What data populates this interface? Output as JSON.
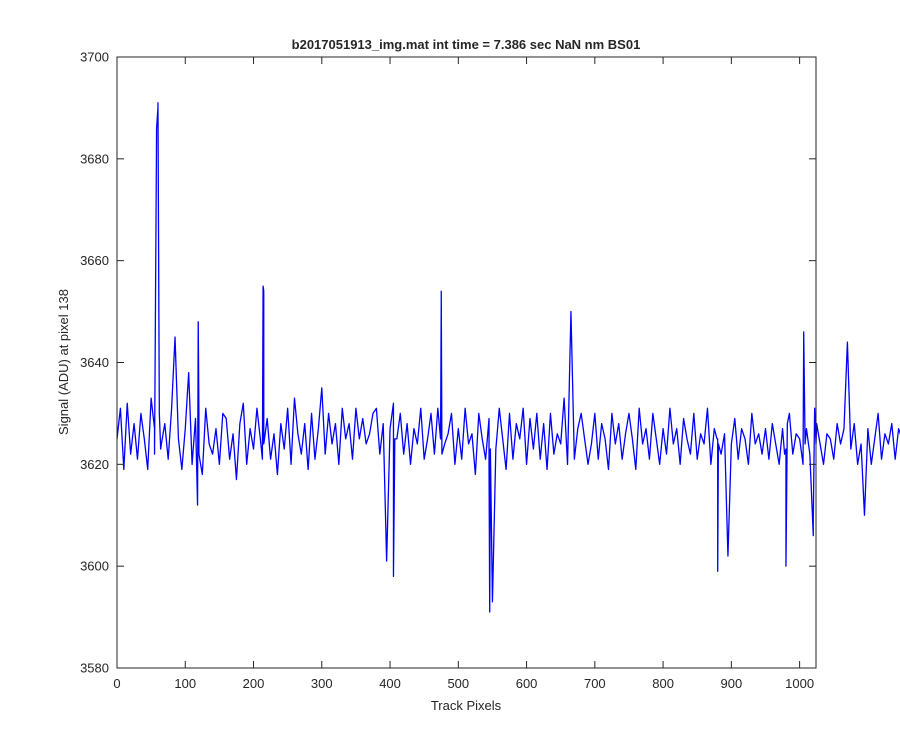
{
  "chart_data": {
    "type": "line",
    "title": "b2017051913_img.mat int time = 7.386 sec  NaN nm BS01",
    "xlabel": "Track Pixels",
    "ylabel": "Signal (ADU) at pixel 138",
    "xlim": [
      0,
      1024
    ],
    "ylim": [
      3580,
      3700
    ],
    "xticks": [
      0,
      100,
      200,
      300,
      400,
      500,
      600,
      700,
      800,
      900,
      1000
    ],
    "yticks": [
      3580,
      3600,
      3620,
      3640,
      3660,
      3680,
      3700
    ],
    "grid": false,
    "box": true,
    "series": [
      {
        "color": "#0000ff",
        "step": 5,
        "x0": 0,
        "values": [
          3625,
          3631,
          3619,
          3632,
          3622,
          3628,
          3621,
          3630,
          3625,
          3619,
          3633,
          3627,
          3690,
          3624,
          3628,
          3621,
          3631,
          3645,
          3625,
          3619,
          3627,
          3638,
          3620,
          3629,
          3630,
          3618,
          3631,
          3624,
          3622,
          3627,
          3620,
          3630,
          3629,
          3621,
          3626,
          3617,
          3628,
          3632,
          3620,
          3627,
          3623,
          3631,
          3625,
          3654,
          3629,
          3621,
          3626,
          3618,
          3628,
          3623,
          3631,
          3620,
          3633,
          3626,
          3622,
          3628,
          3619,
          3630,
          3621,
          3627,
          3635,
          3622,
          3630,
          3624,
          3628,
          3620,
          3631,
          3625,
          3628,
          3621,
          3631,
          3625,
          3629,
          3624,
          3626,
          3630,
          3631,
          3622,
          3628,
          3601,
          3627,
          3632,
          3625,
          3630,
          3622,
          3628,
          3620,
          3627,
          3624,
          3631,
          3621,
          3625,
          3630,
          3622,
          3631,
          3652,
          3624,
          3626,
          3630,
          3620,
          3627,
          3621,
          3631,
          3624,
          3626,
          3618,
          3630,
          3625,
          3621,
          3629,
          3593,
          3623,
          3631,
          3625,
          3619,
          3630,
          3621,
          3628,
          3625,
          3631,
          3620,
          3629,
          3623,
          3630,
          3621,
          3628,
          3619,
          3630,
          3622,
          3626,
          3624,
          3633,
          3620,
          3650,
          3621,
          3627,
          3630,
          3625,
          3620,
          3624,
          3630,
          3621,
          3628,
          3625,
          3619,
          3630,
          3624,
          3628,
          3621,
          3626,
          3630,
          3625,
          3619,
          3631,
          3624,
          3627,
          3621,
          3630,
          3625,
          3620,
          3627,
          3622,
          3631,
          3624,
          3627,
          3620,
          3629,
          3625,
          3622,
          3630,
          3621,
          3626,
          3624,
          3631,
          3620,
          3627,
          3625,
          3622,
          3626,
          3602,
          3624,
          3629,
          3621,
          3627,
          3625,
          3620,
          3630,
          3624,
          3626,
          3622,
          3627,
          3621,
          3628,
          3624,
          3620,
          3627,
          3623,
          3630,
          3622,
          3626,
          3625,
          3620,
          3627,
          3622,
          3606,
          3628,
          3624,
          3620,
          3626,
          3625,
          3621,
          3628,
          3624,
          3627,
          3644,
          3623,
          3628,
          3620,
          3624,
          3610,
          3627,
          3620,
          3625,
          3630,
          3621,
          3626,
          3624,
          3628,
          3621,
          3627,
          3625,
          3620
        ]
      }
    ],
    "segments": [
      {
        "x": 55,
        "v": 3622
      },
      {
        "x": 58,
        "v": 3686
      },
      {
        "x": 60,
        "v": 3691
      },
      {
        "x": 62,
        "v": 3630
      },
      {
        "x": 64,
        "v": 3623
      },
      {
        "x": 118,
        "v": 3612
      },
      {
        "x": 119,
        "v": 3648
      },
      {
        "x": 120,
        "v": 3622
      },
      {
        "x": 213,
        "v": 3621
      },
      {
        "x": 214,
        "v": 3655
      },
      {
        "x": 215,
        "v": 3624
      },
      {
        "x": 403,
        "v": 3630
      },
      {
        "x": 405,
        "v": 3598
      },
      {
        "x": 407,
        "v": 3625
      },
      {
        "x": 474,
        "v": 3625
      },
      {
        "x": 475,
        "v": 3654
      },
      {
        "x": 476,
        "v": 3622
      },
      {
        "x": 545,
        "v": 3620
      },
      {
        "x": 546,
        "v": 3591
      },
      {
        "x": 547,
        "v": 3623
      },
      {
        "x": 879,
        "v": 3625
      },
      {
        "x": 880,
        "v": 3599
      },
      {
        "x": 881,
        "v": 3624
      },
      {
        "x": 978,
        "v": 3622
      },
      {
        "x": 980,
        "v": 3600
      },
      {
        "x": 982,
        "v": 3628
      },
      {
        "x": 1006,
        "v": 3646
      },
      {
        "x": 1008,
        "v": 3624
      },
      {
        "x": 1020,
        "v": 3609
      },
      {
        "x": 1022,
        "v": 3631
      },
      {
        "x": 1024,
        "v": 3624
      }
    ]
  }
}
